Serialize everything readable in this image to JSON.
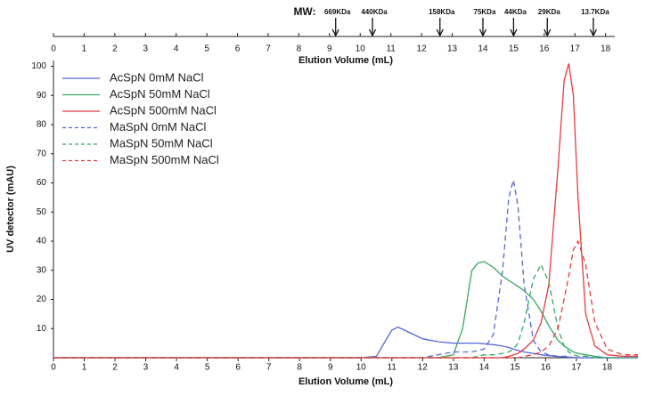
{
  "chart_data": {
    "type": "line",
    "x_label": "Elution Volume (mL)",
    "y_label": "UV detector (mAU)",
    "xlim": [
      0,
      19
    ],
    "xticks": [
      0,
      1,
      2,
      3,
      4,
      5,
      6,
      7,
      8,
      9,
      10,
      11,
      12,
      13,
      14,
      15,
      16,
      17,
      18
    ],
    "ylim": [
      0,
      102
    ],
    "yticks": [
      10,
      20,
      30,
      40,
      50,
      60,
      70,
      80,
      90,
      100
    ],
    "legend": "upper left",
    "x": [
      0,
      2,
      4,
      6,
      8,
      10,
      10.5,
      10.8,
      11,
      11.2,
      11.5,
      12,
      12.5,
      13,
      13.3,
      13.6,
      13.8,
      14,
      14.3,
      14.6,
      14.8,
      14.95,
      15.1,
      15.3,
      15.6,
      15.85,
      16.1,
      16.4,
      16.6,
      16.75,
      16.9,
      17.05,
      17.3,
      17.6,
      18,
      18.5,
      19
    ],
    "series": [
      {
        "name": "AcSpN 0mM NaCl",
        "color": "#5468d8",
        "dashed": false,
        "values": [
          0,
          0,
          0,
          0,
          0,
          0,
          0.5,
          6,
          9.5,
          10.5,
          9,
          6.5,
          5.5,
          5,
          5,
          5,
          5,
          4.8,
          4.5,
          4,
          3.5,
          3,
          2.5,
          2,
          1.5,
          1,
          0.7,
          0.4,
          0.3,
          0.2,
          0.1,
          0,
          0,
          0,
          0,
          0,
          0
        ]
      },
      {
        "name": "AcSpN 50mM NaCl",
        "color": "#35a862",
        "dashed": false,
        "values": [
          0,
          0,
          0,
          0,
          0,
          0,
          0,
          0,
          0,
          0,
          0,
          0,
          0,
          1,
          10,
          30,
          32.5,
          33,
          31,
          28,
          26.5,
          25.5,
          24.5,
          23,
          20,
          16,
          11,
          6,
          4,
          3,
          2,
          1.5,
          1,
          0.5,
          0,
          0,
          0
        ]
      },
      {
        "name": "AcSpN 500mM NaCl",
        "color": "#e63b3b",
        "dashed": false,
        "values": [
          0,
          0,
          0,
          0,
          0,
          0,
          0,
          0,
          0,
          0,
          0,
          0,
          0,
          0,
          0,
          0,
          0,
          0,
          0,
          0,
          0.5,
          1,
          1.5,
          3,
          6,
          12,
          25,
          65,
          95,
          101,
          90,
          55,
          15,
          4,
          1,
          0.5,
          0.5
        ]
      },
      {
        "name": "MaSpN 0mM NaCl",
        "color": "#5468d8",
        "dashed": true,
        "values": [
          0,
          0,
          0,
          0,
          0,
          0,
          0,
          0,
          0,
          0,
          0,
          0,
          1,
          2,
          2,
          2,
          2.5,
          3,
          8,
          30,
          55,
          61,
          52,
          25,
          6,
          2,
          1,
          0.5,
          0.5,
          0.5,
          0,
          0,
          0,
          0,
          0,
          0,
          0
        ]
      },
      {
        "name": "MaSpN 50mM NaCl",
        "color": "#35a862",
        "dashed": true,
        "values": [
          0,
          0,
          0,
          0,
          0,
          0,
          0,
          0,
          0,
          0,
          0,
          0,
          0,
          0,
          0,
          0,
          0.5,
          1,
          1,
          1.5,
          2,
          3,
          5,
          12,
          27,
          32,
          26,
          10,
          4,
          2,
          1,
          0.5,
          0.5,
          0,
          0,
          0,
          0
        ]
      },
      {
        "name": "MaSpN 500mM NaCl",
        "color": "#e63b3b",
        "dashed": true,
        "values": [
          0,
          0,
          0,
          0,
          0,
          0,
          0,
          0,
          0,
          0,
          0,
          0,
          0,
          0,
          0,
          0,
          0,
          0,
          0,
          0,
          0,
          0,
          0,
          0.5,
          1,
          2,
          4,
          10,
          20,
          28,
          37,
          40,
          32,
          12,
          3,
          1,
          1
        ]
      }
    ],
    "top_axis": {
      "label": "MW:",
      "title": "Elution Volume (mL)",
      "xlim": [
        0,
        18.3
      ],
      "xticks": [
        0,
        1,
        2,
        3,
        4,
        5,
        6,
        7,
        8,
        9,
        10,
        11,
        12,
        13,
        14,
        15,
        16,
        17,
        18
      ],
      "markers": [
        {
          "label": "669KDa",
          "value": 9.2
        },
        {
          "label": "440KDa",
          "value": 10.4
        },
        {
          "label": "158KDa",
          "value": 12.6
        },
        {
          "label": "75KDa",
          "value": 14
        },
        {
          "label": "44KDa",
          "value": 15
        },
        {
          "label": "29KDa",
          "value": 16.1
        },
        {
          "label": "13.7KDa",
          "value": 17.6
        }
      ]
    }
  }
}
